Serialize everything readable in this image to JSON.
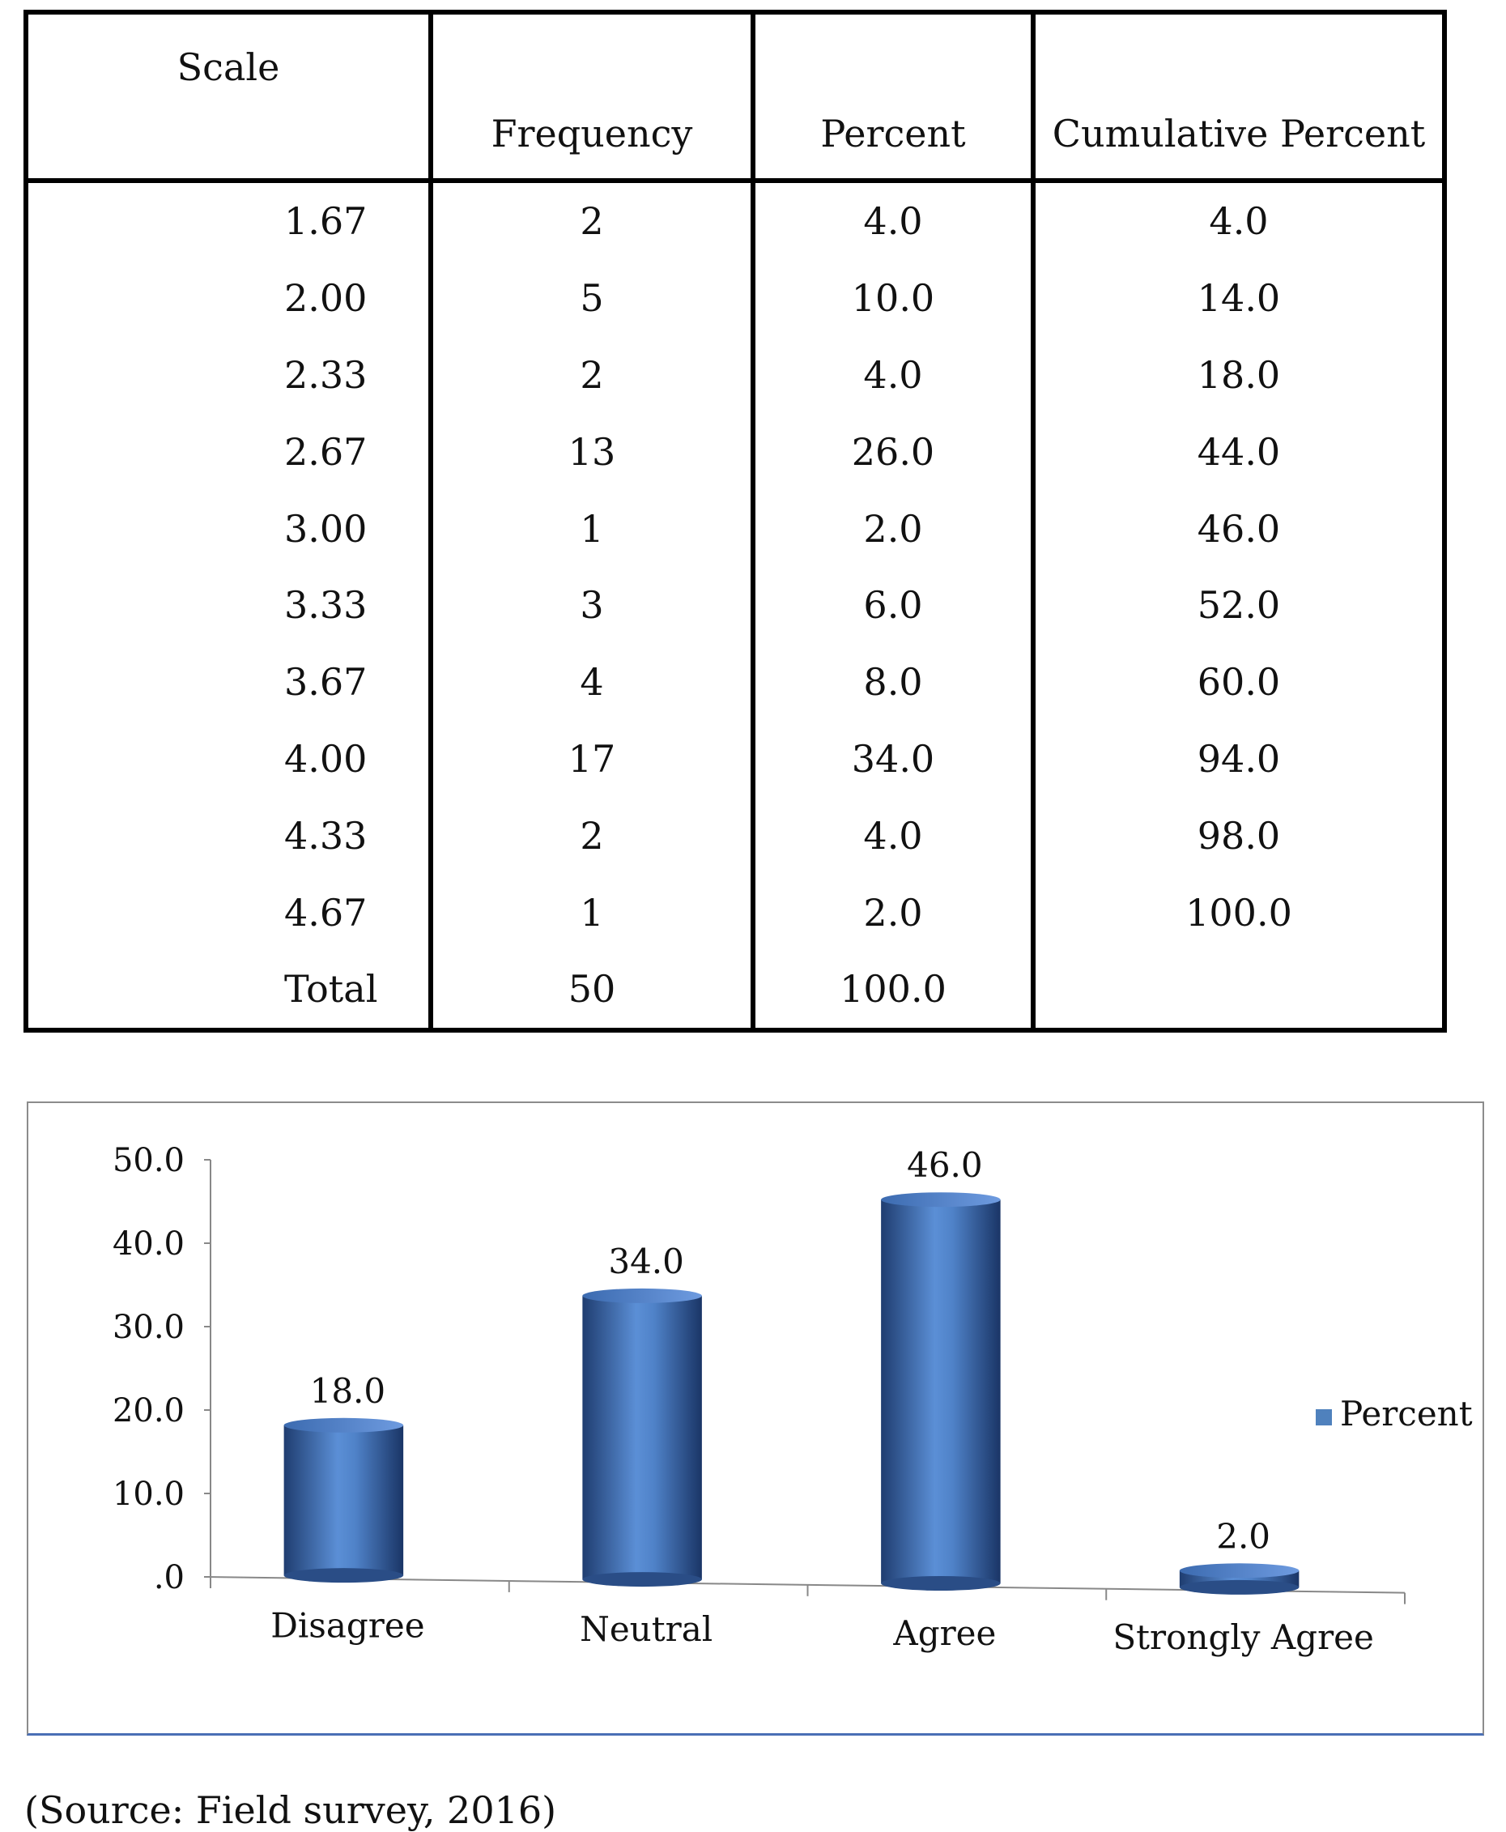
{
  "table": {
    "headers": {
      "scale": "Scale",
      "frequency": "Frequency",
      "percent": "Percent",
      "cumulative": "Cumulative Percent"
    },
    "rows": [
      {
        "scale": "1.67",
        "frequency": "2",
        "percent": "4.0",
        "cumulative": "4.0"
      },
      {
        "scale": "2.00",
        "frequency": "5",
        "percent": "10.0",
        "cumulative": "14.0"
      },
      {
        "scale": "2.33",
        "frequency": "2",
        "percent": "4.0",
        "cumulative": "18.0"
      },
      {
        "scale": "2.67",
        "frequency": "13",
        "percent": "26.0",
        "cumulative": "44.0"
      },
      {
        "scale": "3.00",
        "frequency": "1",
        "percent": "2.0",
        "cumulative": "46.0"
      },
      {
        "scale": "3.33",
        "frequency": "3",
        "percent": "6.0",
        "cumulative": "52.0"
      },
      {
        "scale": "3.67",
        "frequency": "4",
        "percent": "8.0",
        "cumulative": "60.0"
      },
      {
        "scale": "4.00",
        "frequency": "17",
        "percent": "34.0",
        "cumulative": "94.0"
      },
      {
        "scale": "4.33",
        "frequency": "2",
        "percent": "4.0",
        "cumulative": "98.0"
      },
      {
        "scale": "4.67",
        "frequency": "1",
        "percent": "2.0",
        "cumulative": "100.0"
      },
      {
        "scale": "Total",
        "frequency": "50",
        "percent": "100.0",
        "cumulative": ""
      }
    ]
  },
  "chart_data": {
    "type": "bar",
    "categories": [
      "Disagree",
      "Neutral",
      "Agree",
      "Strongly Agree"
    ],
    "series": [
      {
        "name": "Percent",
        "values": [
          18.0,
          34.0,
          46.0,
          2.0
        ],
        "color": "#4f81bd"
      }
    ],
    "data_labels": [
      "18.0",
      "34.0",
      "46.0",
      "2.0"
    ],
    "ylim": [
      0,
      50
    ],
    "yticks": [
      ".0",
      "10.0",
      "20.0",
      "30.0",
      "40.0",
      "50.0"
    ],
    "legend_position": "right",
    "grid": false
  },
  "source_note": "(Source: Field survey, 2016)"
}
